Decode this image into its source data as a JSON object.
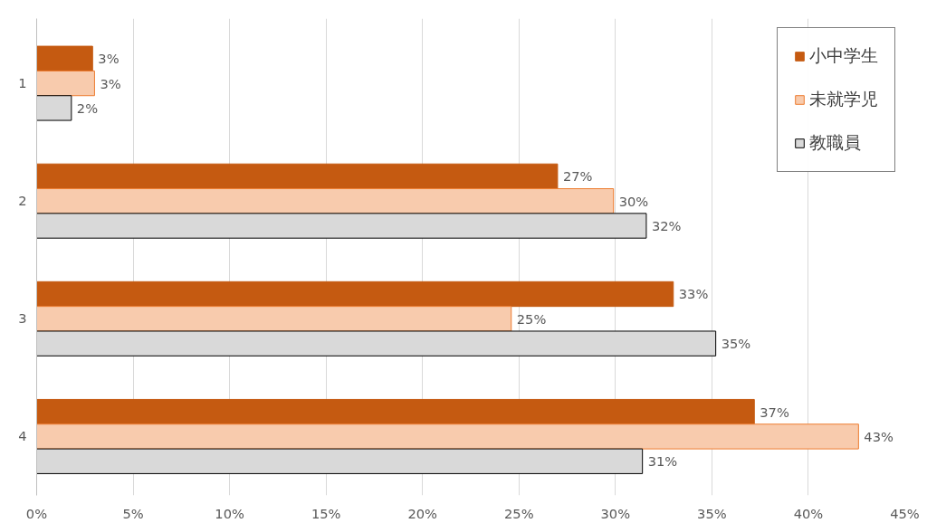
{
  "chart_data": {
    "type": "bar",
    "orientation": "horizontal",
    "categories": [
      "1",
      "2",
      "3",
      "4"
    ],
    "series": [
      {
        "name": "小中学生",
        "color": "#c55a11",
        "values": [
          2.9,
          27.0,
          33.0,
          37.2
        ],
        "value_labels": [
          "3%",
          "27%",
          "33%",
          "37%"
        ]
      },
      {
        "name": "未就学児",
        "color": "#f8cbad",
        "values": [
          3.0,
          29.9,
          24.6,
          42.6
        ],
        "value_labels": [
          "3%",
          "30%",
          "25%",
          "43%"
        ]
      },
      {
        "name": "教職員",
        "color": "#d9d9d9",
        "values": [
          1.8,
          31.6,
          35.2,
          31.4
        ],
        "value_labels": [
          "2%",
          "32%",
          "35%",
          "31%"
        ]
      }
    ],
    "xlim": [
      0,
      45
    ],
    "xticks": [
      {
        "value": 0,
        "label": "0%"
      },
      {
        "value": 5,
        "label": "5%"
      },
      {
        "value": 10,
        "label": "10%"
      },
      {
        "value": 15,
        "label": "15%"
      },
      {
        "value": 20,
        "label": "20%"
      },
      {
        "value": 25,
        "label": "25%"
      },
      {
        "value": 30,
        "label": "30%"
      },
      {
        "value": 35,
        "label": "35%"
      },
      {
        "value": 40,
        "label": "40%"
      },
      {
        "value": 45,
        "label": "45%"
      }
    ],
    "grid": "x",
    "legend": "top right"
  }
}
